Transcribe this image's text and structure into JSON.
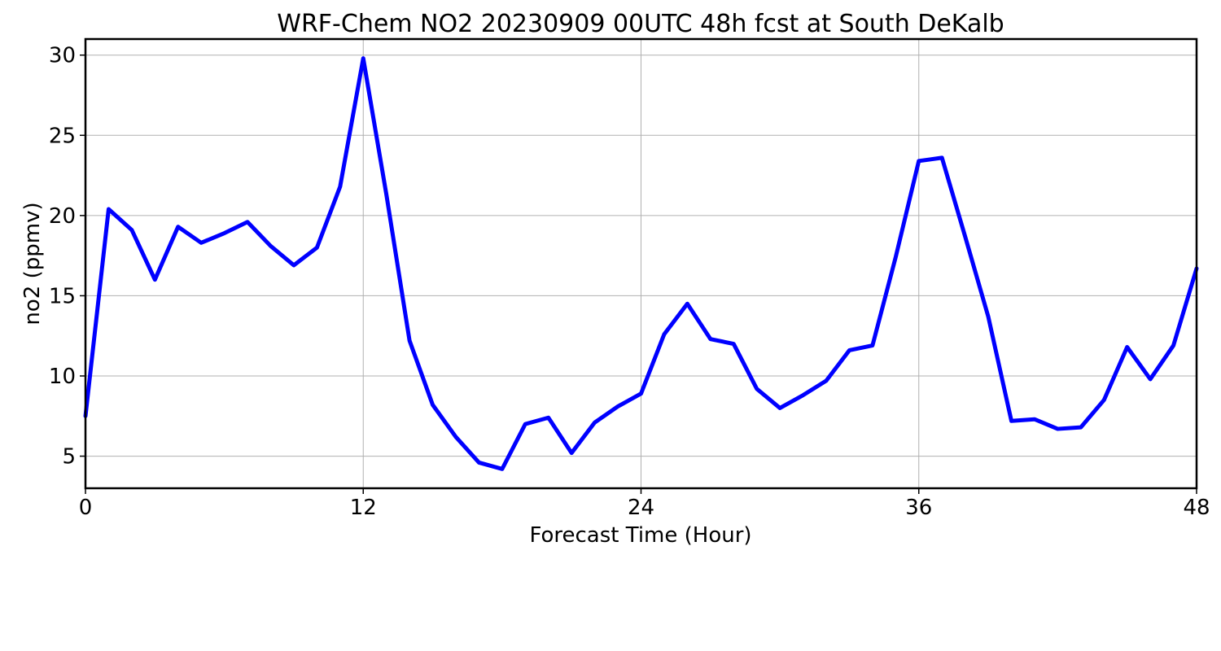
{
  "chart_data": {
    "type": "line",
    "title": "WRF-Chem NO2  20230909 00UTC 48h fcst at South DeKalb",
    "xlabel": "Forecast Time (Hour)",
    "ylabel": "no2  (ppmv)",
    "xlim": [
      0,
      48
    ],
    "ylim": [
      3,
      31
    ],
    "xticks": [
      0,
      12,
      24,
      36,
      48
    ],
    "yticks": [
      5,
      10,
      15,
      20,
      25,
      30
    ],
    "grid": true,
    "legend": false,
    "series": [
      {
        "color": "#0000ff",
        "x": [
          0,
          1,
          2,
          3,
          4,
          5,
          6,
          7,
          8,
          9,
          10,
          11,
          12,
          13,
          14,
          15,
          16,
          17,
          18,
          19,
          20,
          21,
          22,
          23,
          24,
          25,
          26,
          27,
          28,
          29,
          30,
          31,
          32,
          33,
          34,
          35,
          36,
          37,
          38,
          39,
          40,
          41,
          42,
          43,
          44,
          45,
          46,
          47,
          48
        ],
        "y": [
          7.5,
          20.4,
          19.1,
          16.0,
          19.3,
          18.3,
          18.9,
          19.6,
          18.1,
          16.9,
          18.0,
          21.8,
          29.8,
          21.3,
          12.2,
          8.2,
          6.2,
          4.6,
          4.2,
          7.0,
          7.4,
          5.2,
          7.1,
          8.1,
          8.9,
          12.6,
          14.5,
          12.3,
          12.0,
          9.2,
          8.0,
          8.8,
          9.7,
          11.6,
          11.9,
          17.4,
          23.4,
          23.6,
          18.7,
          13.7,
          7.2,
          7.3,
          6.7,
          6.8,
          8.5,
          11.8,
          9.8,
          11.9,
          16.7
        ]
      }
    ]
  }
}
